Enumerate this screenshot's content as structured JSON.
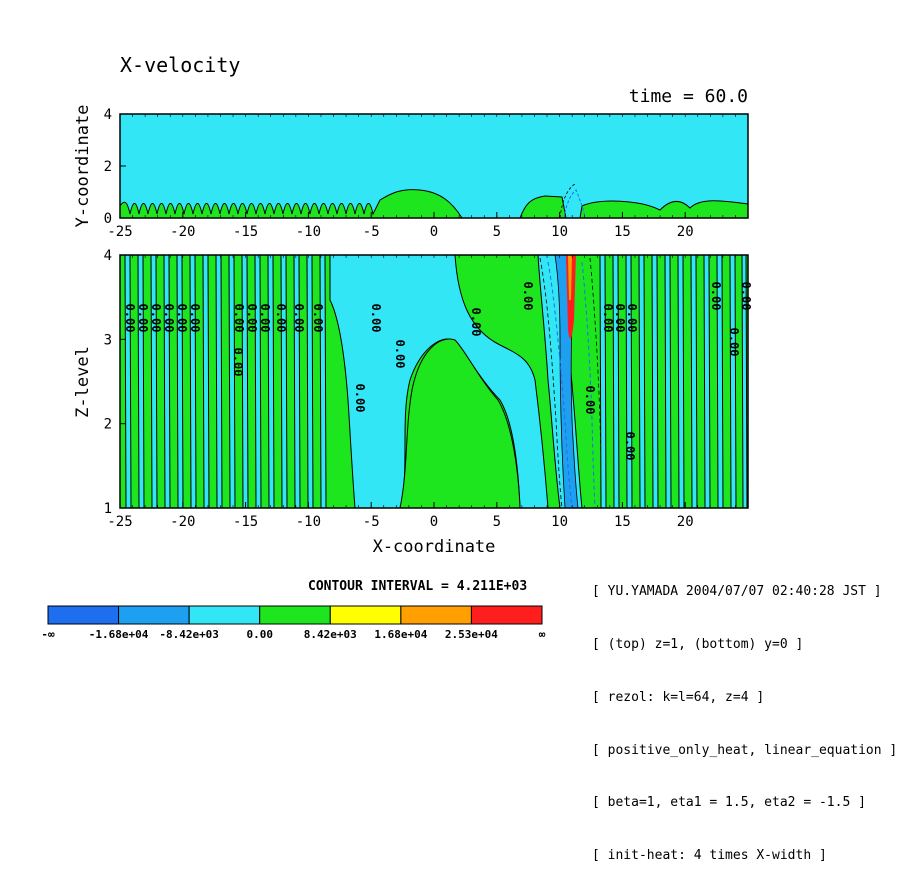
{
  "chart_data": {
    "type": "contour",
    "title": "X-velocity",
    "time_label": "time = 60.0",
    "contour_interval_label": "CONTOUR INTERVAL = 4.211E+03",
    "contour_interval": 4211,
    "panels": [
      {
        "ylabel": "Y-coordinate",
        "xlim": [
          -25,
          25
        ],
        "ylim": [
          0,
          4
        ],
        "xticks": [
          "-25",
          "-20",
          "-15",
          "-10",
          "-5",
          "0",
          "5",
          "10",
          "15",
          "20"
        ],
        "yticks": [
          "0",
          "2",
          "4"
        ],
        "xtick_values": [
          -25,
          -20,
          -15,
          -10,
          -5,
          0,
          5,
          10,
          15,
          20
        ],
        "ytick_values": [
          0,
          2,
          4
        ]
      },
      {
        "ylabel": "Z-level",
        "xlabel": "X-coordinate",
        "xlim": [
          -25,
          25
        ],
        "ylim": [
          1,
          4
        ],
        "xticks": [
          "-25",
          "-20",
          "-15",
          "-10",
          "-5",
          "0",
          "5",
          "10",
          "15",
          "20"
        ],
        "yticks": [
          "1",
          "2",
          "3",
          "4"
        ],
        "xtick_values": [
          -25,
          -20,
          -15,
          -10,
          -5,
          0,
          5,
          10,
          15,
          20
        ],
        "ytick_values": [
          1,
          2,
          3,
          4
        ]
      }
    ],
    "contour_labels": [
      "0.00"
    ],
    "colorbar": {
      "colors": [
        "#1e6ef0",
        "#1ea0f0",
        "#32e6f5",
        "#1ee61e",
        "#ffff00",
        "#ffa000",
        "#ff1e1e"
      ],
      "labels": [
        "-∞",
        "-1.68e+04",
        "-8.42e+03",
        "0.00",
        "8.42e+03",
        "1.68e+04",
        "2.53e+04",
        "∞"
      ]
    },
    "grid": false
  },
  "info_lines": [
    "[ YU.YAMADA 2004/07/07 02:40:28 JST ]",
    "[ (top) z=1, (bottom) y=0 ]",
    "[ rezol: k=l=64, z=4 ]",
    "[ positive_only_heat, linear_equation ]",
    "[ beta=1, eta1 = 1.5, eta2 = -1.5 ]",
    "[ init-heat: 4 times X-width ]"
  ]
}
